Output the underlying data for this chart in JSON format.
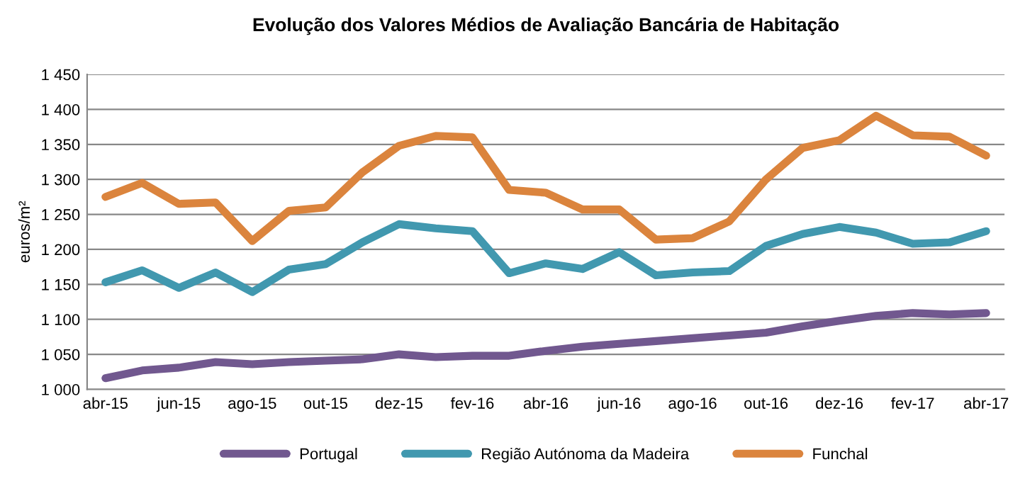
{
  "chart_data": {
    "type": "line",
    "title": "Evolução dos Valores Médios de Avaliação Bancária de Habitação",
    "ylabel": "euros/m²",
    "categories": [
      "abr-15",
      null,
      "jun-15",
      null,
      "ago-15",
      null,
      "out-15",
      null,
      "dez-15",
      null,
      "fev-16",
      null,
      "abr-16",
      null,
      "jun-16",
      null,
      "ago-16",
      null,
      "out-16",
      null,
      "dez-16",
      null,
      "fev-17",
      null,
      "abr-17"
    ],
    "series": [
      {
        "name": "Portugal",
        "color": "#71588f",
        "values": [
          1016,
          1027,
          1031,
          1039,
          1036,
          1039,
          1041,
          1043,
          1050,
          1046,
          1048,
          1048,
          1055,
          1061,
          1065,
          1069,
          1073,
          1077,
          1081,
          1090,
          1098,
          1105,
          1109,
          1107,
          1109
        ]
      },
      {
        "name": "Região Autónoma da Madeira",
        "color": "#4198af",
        "values": [
          1153,
          1170,
          1145,
          1167,
          1139,
          1171,
          1179,
          1210,
          1236,
          1230,
          1226,
          1166,
          1180,
          1172,
          1196,
          1163,
          1167,
          1169,
          1205,
          1222,
          1232,
          1224,
          1208,
          1210,
          1226
        ]
      },
      {
        "name": "Funchal",
        "color": "#db843d",
        "values": [
          1275,
          1295,
          1265,
          1267,
          1212,
          1255,
          1260,
          1310,
          1348,
          1362,
          1360,
          1285,
          1281,
          1257,
          1257,
          1214,
          1216,
          1240,
          1300,
          1345,
          1356,
          1391,
          1363,
          1361,
          1334
        ]
      }
    ],
    "ylim": [
      1000,
      1450
    ],
    "yticks": [
      {
        "value": 1000,
        "label": "1 000"
      },
      {
        "value": 1050,
        "label": "1 050"
      },
      {
        "value": 1100,
        "label": "1 100"
      },
      {
        "value": 1150,
        "label": "1 150"
      },
      {
        "value": 1200,
        "label": "1 200"
      },
      {
        "value": 1250,
        "label": "1 250"
      },
      {
        "value": 1300,
        "label": "1 300"
      },
      {
        "value": 1350,
        "label": "1 350"
      },
      {
        "value": 1400,
        "label": "1 400"
      },
      {
        "value": 1450,
        "label": "1 450"
      }
    ],
    "grid": "y",
    "legend": "bottom",
    "marker": "none",
    "line_style": "solid"
  }
}
